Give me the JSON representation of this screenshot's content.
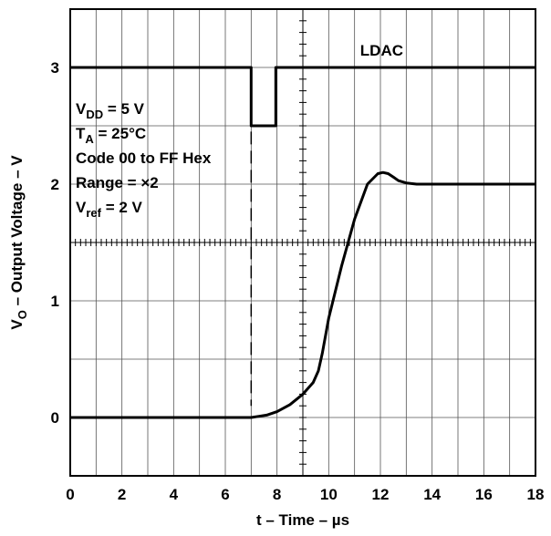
{
  "chart_data": {
    "type": "line",
    "xlabel": {
      "main": "t – Time – ",
      "unit": "µs"
    },
    "ylabel": {
      "prefix": "V",
      "sub": "O",
      "rest": " – Output Voltage – V"
    },
    "xlim": [
      0,
      18
    ],
    "ylim": [
      -0.5,
      3.5
    ],
    "x_ticks": [
      0,
      2,
      4,
      6,
      8,
      10,
      12,
      14,
      16,
      18
    ],
    "y_ticks": [
      0,
      1,
      2,
      3
    ],
    "grid": true,
    "series": [
      {
        "name": "",
        "role": "output",
        "x": [
          0,
          7.0,
          7.3,
          7.6,
          8.0,
          8.5,
          9.0,
          9.4,
          9.6,
          9.75,
          10.0,
          10.5,
          11.0,
          11.5,
          11.9,
          12.1,
          12.3,
          12.5,
          12.7,
          13.0,
          13.4,
          14.0,
          18
        ],
        "y": [
          0,
          0,
          0.01,
          0.02,
          0.05,
          0.11,
          0.2,
          0.3,
          0.4,
          0.55,
          0.85,
          1.3,
          1.7,
          2.0,
          2.09,
          2.1,
          2.09,
          2.06,
          2.03,
          2.01,
          2.0,
          2.0,
          2.0
        ]
      },
      {
        "name": "LDAC",
        "role": "ldac",
        "x": [
          0,
          7.0,
          7.0,
          7.95,
          7.95,
          18
        ],
        "y": [
          3.0,
          3.0,
          2.5,
          2.5,
          3.0,
          3.0
        ]
      }
    ],
    "trigger_marker_x": 7.0,
    "annotations": {
      "series_label": "LDAC",
      "conditions": [
        {
          "main": "V",
          "sub": "DD",
          "rest": " = 5 V"
        },
        {
          "main": "T",
          "sub": "A",
          "rest": " = 25°C"
        },
        {
          "main": "Code 00 to FF Hex",
          "sub": "",
          "rest": ""
        },
        {
          "main": "Range = ×2",
          "sub": "",
          "rest": ""
        },
        {
          "main": "V",
          "sub": "ref",
          "rest": " = 2 V"
        }
      ]
    }
  }
}
